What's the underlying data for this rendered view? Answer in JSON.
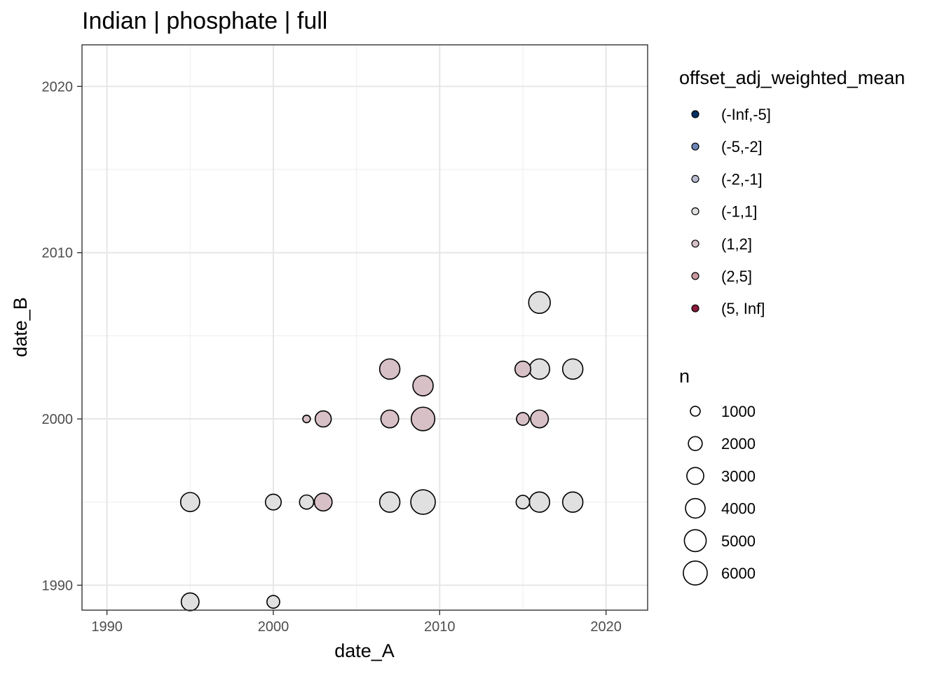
{
  "chart_data": {
    "type": "scatter",
    "title": "Indian | phosphate | full",
    "xlabel": "date_A",
    "ylabel": "date_B",
    "xlim": [
      1988.5,
      2022.5
    ],
    "ylim": [
      1988.5,
      2022.5
    ],
    "x_ticks": [
      1990,
      2000,
      2010,
      2020
    ],
    "y_ticks": [
      1990,
      2000,
      2010,
      2020
    ],
    "grid": true,
    "legend_position": "right",
    "color_legend": {
      "title": "offset_adj_weighted_mean",
      "entries": [
        {
          "label": "(-Inf,-5]",
          "color": "#053061"
        },
        {
          "label": "(-5,-2]",
          "color": "#6d84b7"
        },
        {
          "label": "(-2,-1]",
          "color": "#b9bcd0"
        },
        {
          "label": "(-1,1]",
          "color": "#e0e0e0"
        },
        {
          "label": "(1,2]",
          "color": "#d7c0c6"
        },
        {
          "label": "(2,5]",
          "color": "#c9989f"
        },
        {
          "label": "(5, Inf]",
          "color": "#8b1a3b"
        }
      ]
    },
    "size_legend": {
      "title": "n",
      "entries": [
        {
          "label": "1000",
          "value": 1000
        },
        {
          "label": "2000",
          "value": 2000
        },
        {
          "label": "3000",
          "value": 3000
        },
        {
          "label": "4000",
          "value": 4000
        },
        {
          "label": "5000",
          "value": 5000
        },
        {
          "label": "6000",
          "value": 6000
        }
      ]
    },
    "points": [
      {
        "x": 1995,
        "y": 1989,
        "n": 3300,
        "class": "(-1,1]"
      },
      {
        "x": 2000,
        "y": 1989,
        "n": 1700,
        "class": "(-1,1]"
      },
      {
        "x": 1995,
        "y": 1995,
        "n": 3800,
        "class": "(-1,1]"
      },
      {
        "x": 2000,
        "y": 1995,
        "n": 2600,
        "class": "(-1,1]"
      },
      {
        "x": 2002,
        "y": 1995,
        "n": 2100,
        "class": "(-1,1]"
      },
      {
        "x": 2003,
        "y": 1995,
        "n": 3300,
        "class": "(1,2]"
      },
      {
        "x": 2007,
        "y": 1995,
        "n": 4300,
        "class": "(-1,1]"
      },
      {
        "x": 2009,
        "y": 1995,
        "n": 6300,
        "class": "(-1,1]"
      },
      {
        "x": 2015,
        "y": 1995,
        "n": 1900,
        "class": "(-1,1]"
      },
      {
        "x": 2016,
        "y": 1995,
        "n": 4300,
        "class": "(-1,1]"
      },
      {
        "x": 2018,
        "y": 1995,
        "n": 4300,
        "class": "(-1,1]"
      },
      {
        "x": 2002,
        "y": 2000,
        "n": 600,
        "class": "(1,2]"
      },
      {
        "x": 2003,
        "y": 2000,
        "n": 2700,
        "class": "(1,2]"
      },
      {
        "x": 2007,
        "y": 2000,
        "n": 3300,
        "class": "(1,2]"
      },
      {
        "x": 2009,
        "y": 2000,
        "n": 5800,
        "class": "(1,2]"
      },
      {
        "x": 2015,
        "y": 2000,
        "n": 1700,
        "class": "(1,2]"
      },
      {
        "x": 2016,
        "y": 2000,
        "n": 3300,
        "class": "(1,2]"
      },
      {
        "x": 2007,
        "y": 2003,
        "n": 4300,
        "class": "(1,2]"
      },
      {
        "x": 2009,
        "y": 2002,
        "n": 4300,
        "class": "(1,2]"
      },
      {
        "x": 2015,
        "y": 2003,
        "n": 2600,
        "class": "(1,2]"
      },
      {
        "x": 2016,
        "y": 2003,
        "n": 4300,
        "class": "(-1,1]"
      },
      {
        "x": 2018,
        "y": 2003,
        "n": 4300,
        "class": "(-1,1]"
      },
      {
        "x": 2016,
        "y": 2007,
        "n": 4900,
        "class": "(-1,1]"
      }
    ]
  }
}
